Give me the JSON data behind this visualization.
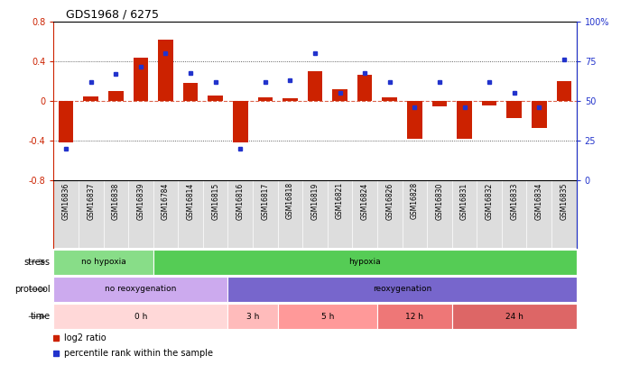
{
  "title": "GDS1968 / 6275",
  "samples": [
    "GSM16836",
    "GSM16837",
    "GSM16838",
    "GSM16839",
    "GSM16784",
    "GSM16814",
    "GSM16815",
    "GSM16816",
    "GSM16817",
    "GSM16818",
    "GSM16819",
    "GSM16821",
    "GSM16824",
    "GSM16826",
    "GSM16828",
    "GSM16830",
    "GSM16831",
    "GSM16832",
    "GSM16833",
    "GSM16834",
    "GSM16835"
  ],
  "log2_ratio": [
    -0.42,
    0.05,
    0.1,
    0.44,
    0.62,
    0.18,
    0.06,
    -0.42,
    0.04,
    0.03,
    0.3,
    0.12,
    0.27,
    0.04,
    -0.38,
    -0.05,
    -0.38,
    -0.04,
    -0.17,
    -0.27,
    0.2
  ],
  "percentile": [
    20,
    62,
    67,
    72,
    80,
    68,
    62,
    20,
    62,
    63,
    80,
    55,
    68,
    62,
    46,
    62,
    46,
    62,
    55,
    46,
    76
  ],
  "bar_color": "#cc2200",
  "dot_color": "#2233cc",
  "bg_color": "#ffffff",
  "ylim_left": [
    -0.8,
    0.8
  ],
  "ylim_right": [
    0,
    100
  ],
  "stress_groups": [
    {
      "label": "no hypoxia",
      "start": 0,
      "end": 4,
      "color": "#88dd88"
    },
    {
      "label": "hypoxia",
      "start": 4,
      "end": 21,
      "color": "#55cc55"
    }
  ],
  "protocol_groups": [
    {
      "label": "no reoxygenation",
      "start": 0,
      "end": 7,
      "color": "#ccaaee"
    },
    {
      "label": "reoxygenation",
      "start": 7,
      "end": 21,
      "color": "#7766cc"
    }
  ],
  "time_groups": [
    {
      "label": "0 h",
      "start": 0,
      "end": 7,
      "color": "#ffd8d8"
    },
    {
      "label": "3 h",
      "start": 7,
      "end": 9,
      "color": "#ffbbbb"
    },
    {
      "label": "5 h",
      "start": 9,
      "end": 13,
      "color": "#ff9999"
    },
    {
      "label": "12 h",
      "start": 13,
      "end": 16,
      "color": "#ee7777"
    },
    {
      "label": "24 h",
      "start": 16,
      "end": 21,
      "color": "#dd6666"
    }
  ],
  "legend_items": [
    {
      "label": "log2 ratio",
      "color": "#cc2200",
      "marker": "s"
    },
    {
      "label": "percentile rank within the sample",
      "color": "#2233cc",
      "marker": "s"
    }
  ]
}
